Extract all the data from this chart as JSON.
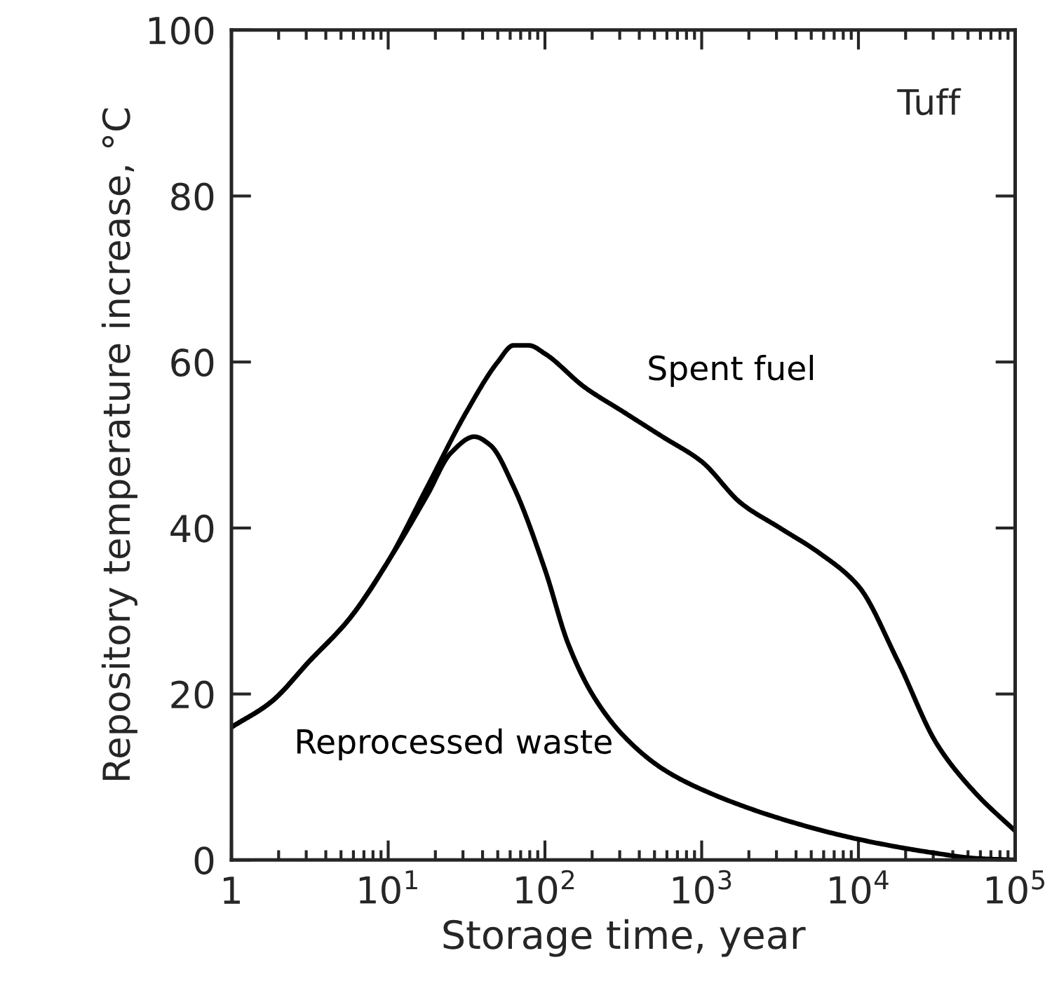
{
  "chart_data": {
    "type": "line",
    "xlabel": "Storage time, year",
    "ylabel": "Repository temperature increase, °C",
    "log": "x",
    "xlim": [
      1,
      100000
    ],
    "xticks": [
      {
        "value": 1,
        "label": "1"
      },
      {
        "value": 10,
        "label": "10$^{1}$"
      },
      {
        "value": 100,
        "label": "10$^{2}$"
      },
      {
        "value": 1000,
        "label": "10$^{3}$"
      },
      {
        "value": 10000,
        "label": "10$^{4}$"
      },
      {
        "value": 100000,
        "label": "10$^{5}$"
      }
    ],
    "ylim": [
      0,
      100
    ],
    "yticks": [
      0,
      20,
      40,
      60,
      80,
      100
    ],
    "grid": false,
    "legend": false,
    "marker": "none",
    "line_style": "solid",
    "series": [
      {
        "name": "Spent fuel",
        "color": "#000000",
        "x": [
          1,
          1.78,
          3.16,
          5.62,
          10,
          17.8,
          31.6,
          50,
          63,
          79,
          100,
          178,
          316,
          562,
          1000,
          1780,
          3160,
          5620,
          10000,
          17800,
          31600,
          56200,
          100000
        ],
        "values": [
          16,
          19,
          24,
          29,
          36,
          45,
          54,
          60,
          62,
          62,
          61,
          57,
          54,
          51,
          48,
          43,
          40,
          37,
          33,
          24,
          14,
          8,
          3.5
        ]
      },
      {
        "name": "Reprocessed waste",
        "color": "#000000",
        "x": [
          1,
          1.78,
          3.16,
          5.62,
          10,
          17.8,
          25,
          35.5,
          44.7,
          63,
          100,
          141,
          200,
          316,
          562,
          1000,
          3160,
          10000,
          31600,
          56200,
          100000
        ],
        "values": [
          16,
          19,
          24,
          29,
          36,
          44,
          49,
          51,
          50,
          45,
          35,
          26,
          20,
          15,
          11,
          8.5,
          5,
          2.5,
          0.8,
          0.2,
          0
        ]
      }
    ],
    "annotations": [
      "Tuff"
    ]
  }
}
